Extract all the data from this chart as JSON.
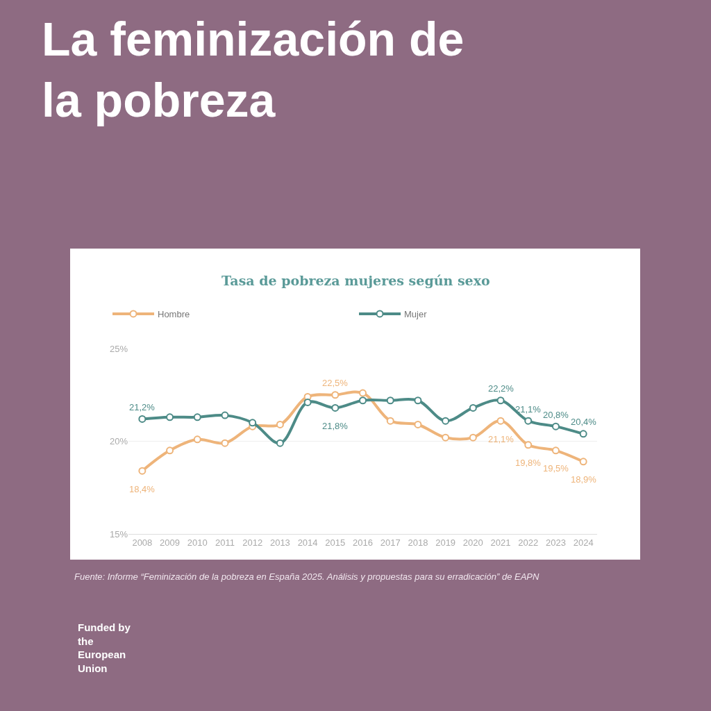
{
  "chart_data": {
    "type": "line",
    "title": "La feminización de la pobreza",
    "subtitle": "Tasa de pobreza mujeres según sexo",
    "categories": [
      "2008",
      "2009",
      "2010",
      "2011",
      "2012",
      "2013",
      "2014",
      "2015",
      "2016",
      "2017",
      "2018",
      "2019",
      "2020",
      "2021",
      "2022",
      "2023",
      "2024"
    ],
    "series": [
      {
        "name": "Hombre",
        "color": "#eeb47a",
        "values": [
          18.4,
          19.5,
          20.1,
          19.9,
          20.8,
          20.9,
          22.4,
          22.5,
          22.6,
          21.1,
          20.9,
          20.2,
          20.2,
          21.1,
          19.8,
          19.5,
          18.9
        ],
        "value_labels": [
          "18,4%",
          null,
          null,
          null,
          null,
          null,
          null,
          "22,5%",
          null,
          null,
          null,
          null,
          null,
          "21,1%",
          "19,8%",
          "19,5%",
          "18,9%"
        ]
      },
      {
        "name": "Mujer",
        "color": "#4d8b87",
        "values": [
          21.2,
          21.3,
          21.3,
          21.4,
          21.0,
          19.9,
          22.1,
          21.8,
          22.2,
          22.2,
          22.2,
          21.1,
          21.8,
          22.2,
          21.1,
          20.8,
          20.4
        ],
        "value_labels": [
          "21,2%",
          null,
          null,
          null,
          null,
          null,
          null,
          "21,8%",
          null,
          null,
          null,
          null,
          null,
          "22,2%",
          "21,1%",
          "20,8%",
          "20,4%"
        ]
      }
    ],
    "ylim": [
      15,
      25
    ],
    "yticks": [
      {
        "value": 15,
        "label": "15%"
      },
      {
        "value": 20,
        "label": "20%"
      },
      {
        "value": 25,
        "label": "25%"
      }
    ],
    "grid": "y",
    "legend": "top",
    "marker": "circle",
    "line_style": "solid",
    "annotations": [
      "Fuente: Informe “Feminización de la pobreza en España 2025. Análisis y propuestas para su erradicación” de EAPN",
      "Funded by the European Union"
    ]
  }
}
